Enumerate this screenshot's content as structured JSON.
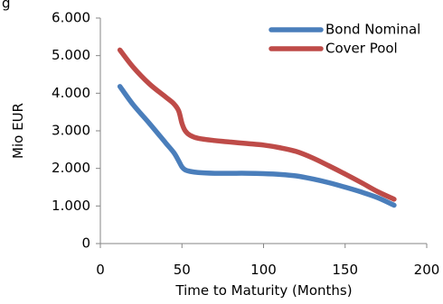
{
  "header_fragment": "g",
  "chart_data": {
    "type": "line",
    "title": "",
    "xlabel": "Time to Maturity (Months)",
    "ylabel": "Mio EUR",
    "xlim": [
      0,
      200
    ],
    "ylim": [
      0,
      6000
    ],
    "x_ticks": [
      0,
      50,
      100,
      150,
      200
    ],
    "x_tick_labels": [
      "0",
      "50",
      "100",
      "150",
      "200"
    ],
    "y_ticks": [
      0,
      1000,
      2000,
      3000,
      4000,
      5000,
      6000
    ],
    "y_tick_labels": [
      "0",
      "1.000",
      "2.000",
      "3.000",
      "4.000",
      "5.000",
      "6.000"
    ],
    "grid": false,
    "legend_position": "top-right",
    "series": [
      {
        "name": "Bond Nominal",
        "color": "#4a7ebb",
        "x": [
          12,
          20,
          30,
          40,
          45,
          48,
          50,
          52,
          55,
          60,
          70,
          80,
          90,
          100,
          110,
          120,
          130,
          140,
          150,
          160,
          170,
          180
        ],
        "values": [
          4180,
          3700,
          3200,
          2680,
          2420,
          2200,
          2040,
          1960,
          1920,
          1890,
          1870,
          1870,
          1870,
          1860,
          1840,
          1800,
          1720,
          1620,
          1500,
          1370,
          1220,
          1020
        ]
      },
      {
        "name": "Cover Pool",
        "color": "#be4b48",
        "x": [
          12,
          20,
          30,
          40,
          45,
          48,
          50,
          52,
          55,
          60,
          70,
          80,
          90,
          100,
          110,
          120,
          130,
          140,
          150,
          160,
          170,
          180
        ],
        "values": [
          5150,
          4700,
          4250,
          3900,
          3720,
          3530,
          3200,
          3000,
          2880,
          2800,
          2740,
          2700,
          2660,
          2620,
          2550,
          2450,
          2280,
          2070,
          1850,
          1620,
          1380,
          1180
        ]
      }
    ]
  }
}
